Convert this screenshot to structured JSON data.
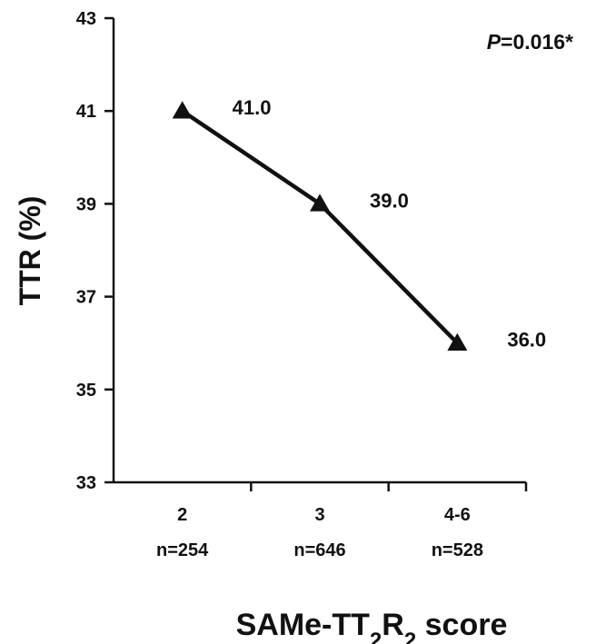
{
  "chart_data": {
    "type": "line",
    "categories": [
      "2",
      "3",
      "4-6"
    ],
    "category_counts": [
      "n=254",
      "n=646",
      "n=528"
    ],
    "values": [
      41.0,
      39.0,
      36.0
    ],
    "data_labels": [
      "41.0",
      "39.0",
      "36.0"
    ],
    "ylabel": "TTR (%)",
    "xlabel": {
      "prefix": "SAMe-TT",
      "sub1": "2",
      "mid": "R",
      "sub2": "2",
      "suffix": " score"
    },
    "ylim": [
      33,
      43
    ],
    "yticks": [
      33,
      35,
      37,
      39,
      41,
      43
    ],
    "ytick_labels": [
      "33",
      "35",
      "37",
      "39",
      "41",
      "43"
    ],
    "annotation": {
      "italic": "P",
      "rest": "=0.016*"
    },
    "marker": "triangle",
    "grid": false,
    "legend": "none",
    "line_color": "#111111"
  }
}
